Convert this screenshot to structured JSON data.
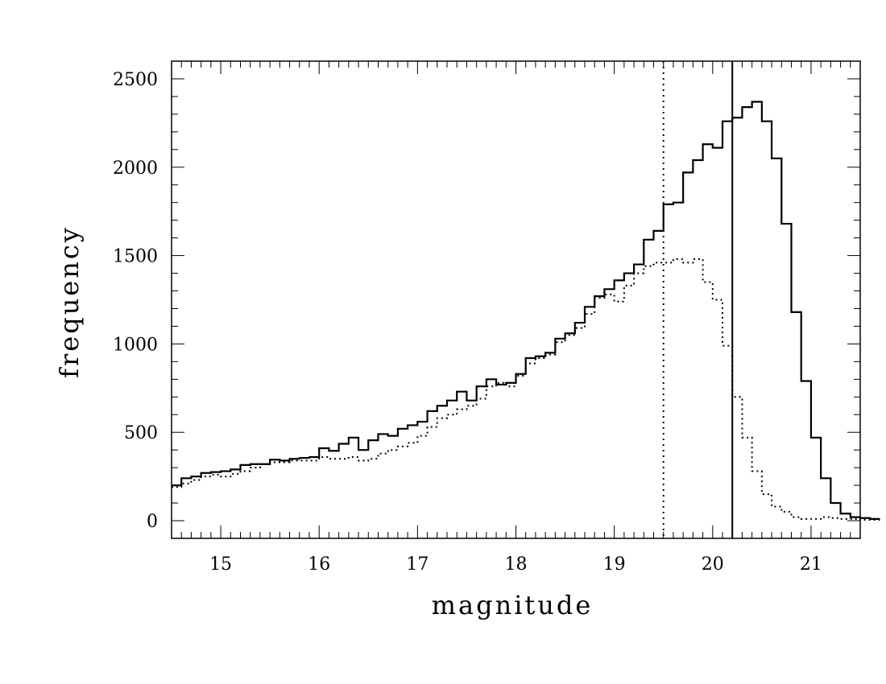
{
  "chart_data": {
    "type": "line",
    "subtype": "step-histogram",
    "title": "",
    "xlabel": "magnitude",
    "ylabel": "frequency",
    "xlim": [
      14.5,
      21.5
    ],
    "ylim": [
      -100,
      2600
    ],
    "x_ticks": [
      15,
      16,
      17,
      18,
      19,
      20,
      21
    ],
    "y_ticks": [
      0,
      500,
      1000,
      1500,
      2000,
      2500
    ],
    "grid": false,
    "legend": "none",
    "bin_width": 0.1,
    "bin_edges_start": 14.5,
    "series": [
      {
        "style": "solid",
        "values": [
          200,
          240,
          250,
          270,
          275,
          280,
          290,
          315,
          320,
          320,
          345,
          340,
          350,
          355,
          360,
          410,
          395,
          435,
          470,
          400,
          455,
          490,
          480,
          520,
          540,
          560,
          620,
          650,
          680,
          730,
          680,
          760,
          800,
          770,
          780,
          830,
          920,
          930,
          950,
          1030,
          1060,
          1120,
          1210,
          1270,
          1310,
          1360,
          1400,
          1450,
          1590,
          1640,
          1790,
          1800,
          1970,
          2040,
          2130,
          2110,
          2260,
          2280,
          2340,
          2370,
          2260,
          2050,
          1680,
          1180,
          790,
          470,
          240,
          100,
          40,
          20,
          15,
          10
        ]
      },
      {
        "style": "dotted",
        "values": [
          190,
          210,
          230,
          250,
          260,
          250,
          265,
          280,
          300,
          320,
          330,
          330,
          340,
          340,
          340,
          360,
          350,
          350,
          360,
          340,
          350,
          380,
          400,
          420,
          440,
          480,
          530,
          580,
          600,
          630,
          650,
          690,
          760,
          780,
          760,
          820,
          890,
          920,
          940,
          1010,
          1050,
          1090,
          1170,
          1260,
          1280,
          1240,
          1330,
          1400,
          1440,
          1460,
          1460,
          1480,
          1460,
          1480,
          1350,
          1250,
          990,
          700,
          470,
          280,
          150,
          80,
          50,
          20,
          10,
          10,
          20,
          15,
          10,
          10,
          5,
          5
        ]
      }
    ],
    "reference_lines": [
      {
        "x": 19.5,
        "style": "dotted"
      },
      {
        "x": 20.2,
        "style": "solid"
      }
    ]
  }
}
